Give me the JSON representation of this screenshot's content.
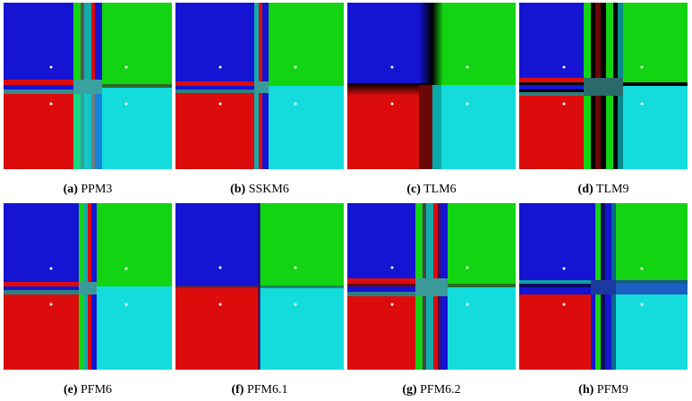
{
  "colors": {
    "blue": "#1414d2",
    "green": "#12d412",
    "red": "#dc0c0c",
    "cyan": "#14dcdc",
    "black": "#000000"
  },
  "panels": [
    {
      "id": "a",
      "label": "(a)",
      "name": "PPM3"
    },
    {
      "id": "b",
      "label": "(b)",
      "name": "SSKM6"
    },
    {
      "id": "c",
      "label": "(c)",
      "name": "TLM6"
    },
    {
      "id": "d",
      "label": "(d)",
      "name": "TLM9"
    },
    {
      "id": "e",
      "label": "(e)",
      "name": "PFM6"
    },
    {
      "id": "f",
      "label": "(f)",
      "name": "PFM6.1"
    },
    {
      "id": "g",
      "label": "(g)",
      "name": "PFM6.2"
    },
    {
      "id": "h",
      "label": "(h)",
      "name": "PFM9"
    }
  ]
}
